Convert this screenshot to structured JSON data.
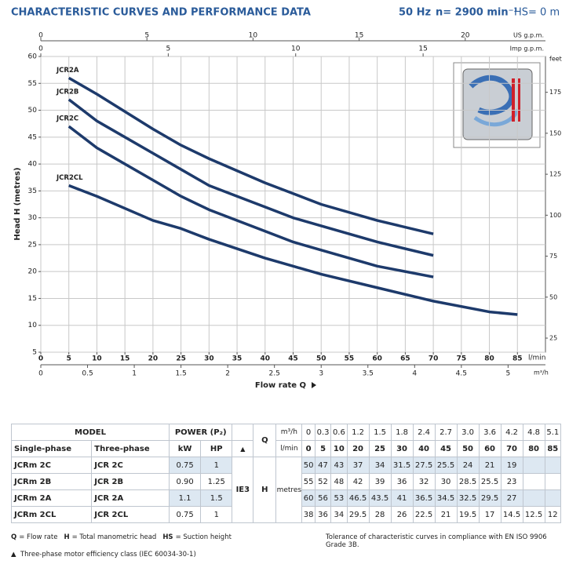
{
  "header": {
    "title": "CHARACTERISTIC CURVES AND PERFORMANCE DATA",
    "frequency": "50 Hz",
    "speed": "n= 2900 min⁻¹",
    "suction": "HS= 0 m"
  },
  "chart_data": {
    "type": "line",
    "xlabel": "Flow rate Q",
    "xunit": "l/min",
    "ylabel": "Head H (metres)",
    "x": [
      5,
      10,
      20,
      25,
      30,
      40,
      45,
      50,
      60,
      70,
      80,
      85
    ],
    "series": [
      {
        "name": "JCR2A",
        "color": "#1d3a6b",
        "values": [
          56,
          53,
          46.5,
          43.5,
          41,
          36.5,
          34.5,
          32.5,
          29.5,
          27,
          null,
          null
        ]
      },
      {
        "name": "JCR2B",
        "color": "#1d3a6b",
        "values": [
          52,
          48,
          42,
          39,
          36,
          32,
          30,
          28.5,
          25.5,
          23,
          null,
          null
        ]
      },
      {
        "name": "JCR2C",
        "color": "#1d3a6b",
        "values": [
          47,
          43,
          37,
          34,
          31.5,
          27.5,
          25.5,
          24,
          21,
          19,
          null,
          null
        ]
      },
      {
        "name": "JCR2CL",
        "color": "#1d3a6b",
        "values": [
          36,
          34,
          29.5,
          28,
          26,
          22.5,
          21,
          19.5,
          17,
          14.5,
          12.5,
          12
        ]
      }
    ],
    "xlim": [
      0,
      90
    ],
    "xticks": [
      0,
      5,
      10,
      15,
      20,
      25,
      30,
      35,
      40,
      45,
      50,
      55,
      60,
      65,
      70,
      75,
      80,
      85
    ],
    "ylim": [
      5,
      60
    ],
    "yticks": [
      5,
      10,
      15,
      20,
      25,
      30,
      35,
      40,
      45,
      50,
      55,
      60
    ],
    "grid": true,
    "top_axes": [
      {
        "label": "US g.p.m.",
        "lim": [
          0,
          23.78
        ],
        "ticks": [
          0,
          5,
          10,
          15,
          20
        ]
      },
      {
        "label": "Imp g.p.m.",
        "lim": [
          0,
          19.8
        ],
        "ticks": [
          0,
          5,
          10,
          15
        ]
      }
    ],
    "bottom_axis2": {
      "label": "m³/h",
      "lim": [
        0,
        5.4
      ],
      "ticks": [
        0,
        0.5,
        1,
        1.5,
        2,
        2.5,
        3,
        3.5,
        4,
        4.5,
        5
      ]
    },
    "right_axis": {
      "label": "feet",
      "lim": [
        16.4,
        196.85
      ],
      "ticks": [
        25,
        50,
        75,
        100,
        125,
        150,
        175
      ]
    }
  },
  "table": {
    "model": "MODEL",
    "power": "POWER (P₂)",
    "columns": [
      "Single-phase",
      "Three-phase",
      "kW",
      "HP"
    ],
    "efficiency_mark": "▲",
    "q": "Q",
    "q_units": [
      "m³/h",
      "l/min"
    ],
    "q_m3h": [
      0,
      0.3,
      0.6,
      1.2,
      1.5,
      1.8,
      2.4,
      2.7,
      "3.0",
      3.6,
      4.2,
      4.8,
      5.1
    ],
    "q_lmin": [
      0,
      5,
      10,
      20,
      25,
      30,
      40,
      45,
      50,
      60,
      70,
      80,
      85
    ],
    "ie_class": "IE3",
    "h": "H",
    "h_unit": "metres",
    "rows": [
      {
        "single": "JCRm 2C",
        "three": "JCR 2C",
        "kw": 0.75,
        "hp": 1,
        "values": [
          50,
          47,
          43,
          37,
          34,
          31.5,
          27.5,
          25.5,
          24,
          21,
          19
        ]
      },
      {
        "single": "JCRm 2B",
        "three": "JCR 2B",
        "kw": "0.90",
        "hp": 1.25,
        "values": [
          55,
          52,
          48,
          42,
          39,
          36,
          32,
          30,
          28.5,
          25.5,
          23
        ]
      },
      {
        "single": "JCRm 2A",
        "three": "JCR 2A",
        "kw": 1.1,
        "hp": 1.5,
        "values": [
          60,
          56,
          53,
          46.5,
          43.5,
          41,
          36.5,
          34.5,
          32.5,
          29.5,
          27
        ]
      },
      {
        "single": "JCRm 2CL",
        "three": "JCR 2CL",
        "kw": 0.75,
        "hp": 1,
        "values": [
          38,
          36,
          34,
          29.5,
          28,
          26,
          22.5,
          21,
          19.5,
          17,
          14.5,
          12.5,
          12
        ]
      }
    ]
  },
  "notes": {
    "legend": [
      {
        "symbol": "Q",
        "text": "= Flow rate"
      },
      {
        "symbol": "H",
        "text": "= Total manometric head"
      },
      {
        "symbol": "HS",
        "text": "= Suction height"
      }
    ],
    "tolerance": "Tolerance of characteristic curves in compliance with EN ISO 9906 Grade 3B.",
    "efficiency": "Three-phase motor efficiency class (IEC 60034-30-1)"
  }
}
